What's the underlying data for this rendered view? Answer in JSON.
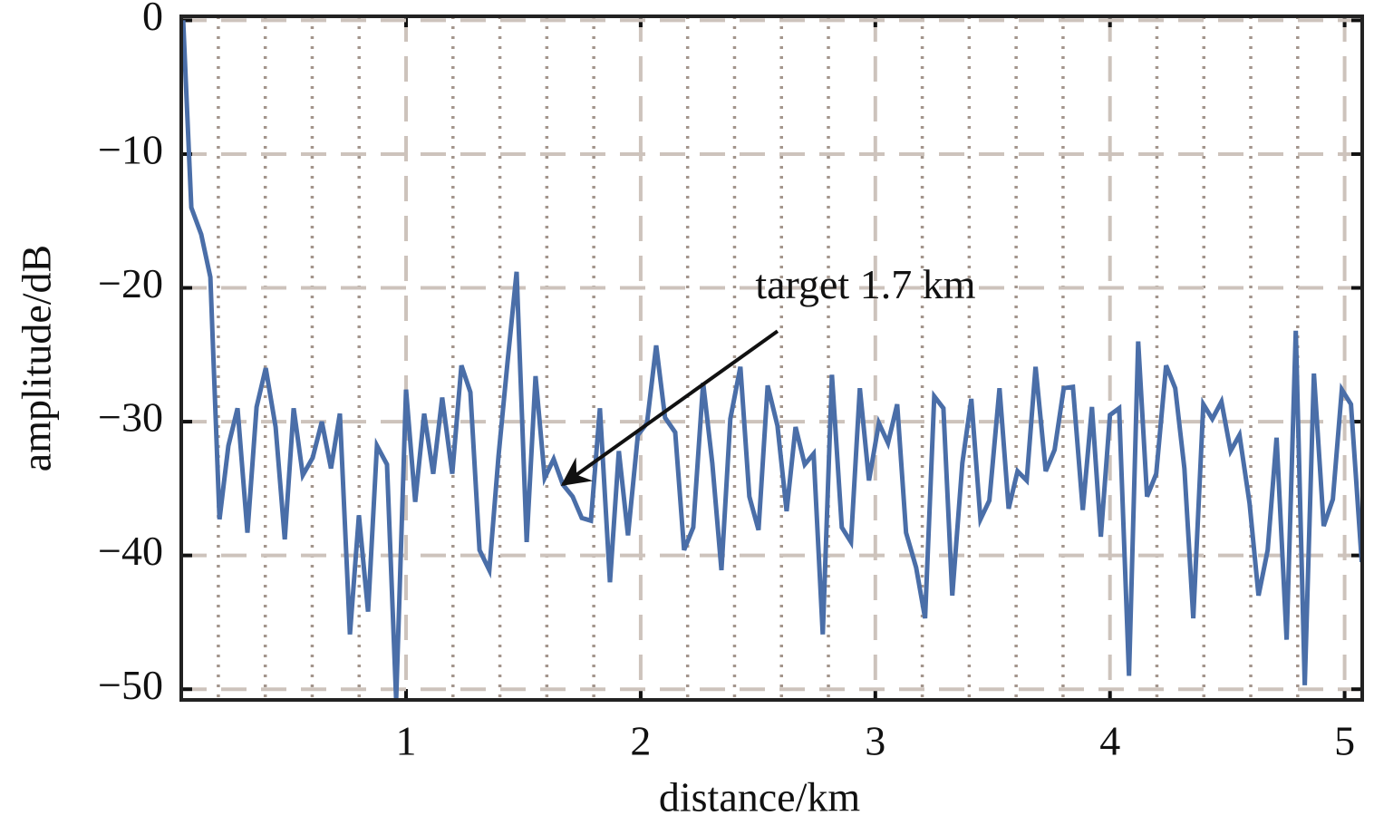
{
  "chart_data": {
    "type": "line",
    "xlabel": "distance/km",
    "ylabel": "amplitude/dB",
    "x": [
      0.05,
      0.085,
      0.127,
      0.166,
      0.205,
      0.243,
      0.282,
      0.324,
      0.363,
      0.402,
      0.444,
      0.483,
      0.521,
      0.56,
      0.602,
      0.641,
      0.68,
      0.718,
      0.761,
      0.799,
      0.838,
      0.876,
      0.919,
      0.958,
      1.0,
      1.039,
      1.077,
      1.116,
      1.154,
      1.197,
      1.236,
      1.274,
      1.313,
      1.355,
      1.394,
      1.432,
      1.471,
      1.514,
      1.552,
      1.591,
      1.629,
      1.668,
      1.71,
      1.749,
      1.788,
      1.826,
      1.869,
      1.907,
      1.946,
      1.988,
      2.027,
      2.066,
      2.104,
      2.147,
      2.185,
      2.224,
      2.266,
      2.305,
      2.344,
      2.382,
      2.425,
      2.463,
      2.502,
      2.541,
      2.583,
      2.622,
      2.66,
      2.699,
      2.737,
      2.776,
      2.815,
      2.857,
      2.896,
      2.934,
      2.973,
      3.015,
      3.054,
      3.093,
      3.131,
      3.174,
      3.212,
      3.251,
      3.29,
      3.328,
      3.371,
      3.409,
      3.448,
      3.486,
      3.529,
      3.568,
      3.606,
      3.645,
      3.683,
      3.726,
      3.764,
      3.803,
      3.842,
      3.884,
      3.923,
      3.961,
      4.0,
      4.039,
      4.081,
      4.12,
      4.158,
      4.197,
      4.239,
      4.278,
      4.317,
      4.355,
      4.398,
      4.436,
      4.475,
      4.514,
      4.552,
      4.595,
      4.633,
      4.672,
      4.71,
      4.753,
      4.792,
      4.83,
      4.869,
      4.911,
      4.95,
      4.988,
      5.027,
      5.073
    ],
    "series": [
      {
        "color": "#4a6ea8",
        "values": [
          0,
          -14,
          -16,
          -19.2,
          -37.3,
          -31.8,
          -29,
          -38.3,
          -28.9,
          -26,
          -30.4,
          -38.8,
          -29,
          -34,
          -32.7,
          -30,
          -33.5,
          -29.4,
          -45.9,
          -37,
          -44.2,
          -31.8,
          -33.2,
          -50.8,
          -27.6,
          -36,
          -29.4,
          -33.9,
          -28.2,
          -33.9,
          -25.8,
          -27.8,
          -39.6,
          -41.1,
          -32.6,
          -25.6,
          -18.8,
          -39,
          -26.6,
          -34.2,
          -32.8,
          -34.7,
          -35.6,
          -37.2,
          -37.4,
          -29,
          -42,
          -32.2,
          -38.5,
          -31,
          -30.1,
          -24.3,
          -29.7,
          -30.8,
          -39.6,
          -37.9,
          -27.1,
          -33.1,
          -41.1,
          -29.8,
          -25.9,
          -35.6,
          -38.1,
          -27.3,
          -30.3,
          -36.7,
          -30.4,
          -33.2,
          -32.4,
          -45.9,
          -26.5,
          -37.9,
          -39,
          -27.5,
          -34.4,
          -30.1,
          -31.6,
          -28.7,
          -38.3,
          -40.9,
          -44.7,
          -28.1,
          -29,
          -43,
          -33.1,
          -28.3,
          -37.3,
          -35.9,
          -27.5,
          -36.5,
          -33.7,
          -34.4,
          -25.9,
          -33.7,
          -32.1,
          -27.5,
          -27.4,
          -36.6,
          -28.9,
          -38.6,
          -29.5,
          -29,
          -49,
          -24,
          -35.6,
          -33.9,
          -25.8,
          -27.5,
          -33.5,
          -44.7,
          -28.7,
          -29.8,
          -28.5,
          -32.2,
          -31,
          -36.1,
          -43,
          -39.6,
          -31.2,
          -46.3,
          -23.2,
          -49.7,
          -26.4,
          -37.8,
          -35.8,
          -27.6,
          -28.7,
          -40.5
        ]
      }
    ],
    "xlim": [
      0.042,
      5.075
    ],
    "ylim": [
      -50.8,
      0.3
    ],
    "xticks": [
      1,
      2,
      3,
      4,
      5
    ],
    "xminorticks": [
      0.2,
      0.4,
      0.6,
      0.8,
      1.2,
      1.4,
      1.6,
      1.8,
      2.2,
      2.4,
      2.6,
      2.8,
      3.2,
      3.4,
      3.6,
      3.8,
      4.2,
      4.4,
      4.6,
      4.8
    ],
    "yticks": [
      0,
      {
        "value": -10,
        "label": "−10"
      },
      {
        "value": -20,
        "label": "−20"
      },
      {
        "value": -30,
        "label": "−30"
      },
      {
        "value": -40,
        "label": "−40"
      },
      {
        "value": -50,
        "label": "−50"
      }
    ],
    "grid": true,
    "annotation": {
      "text": "target 1.7 km",
      "xy": [
        1.668,
        -34.7
      ],
      "xytext": [
        2.958,
        -20.05
      ]
    }
  }
}
